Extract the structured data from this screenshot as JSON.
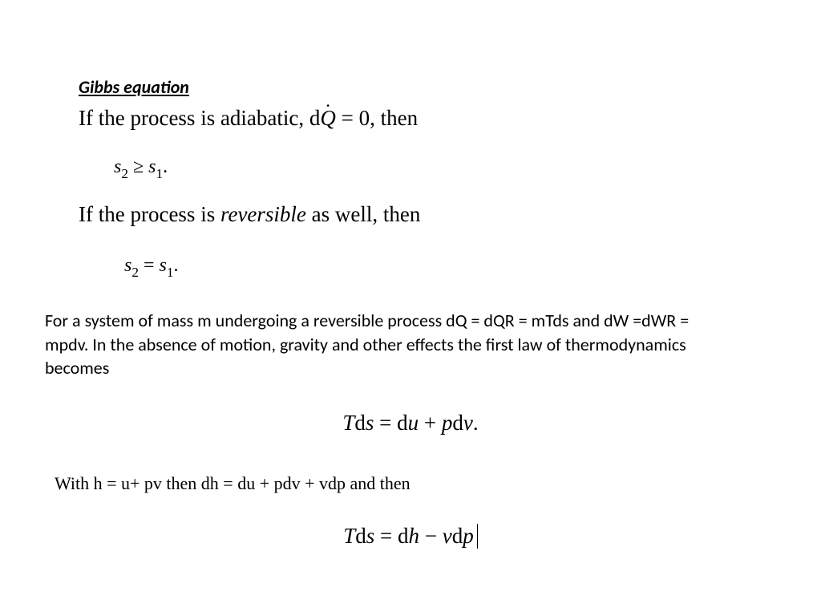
{
  "heading": "Gibbs equation",
  "line1": {
    "prefix": "If the process is adiabatic, d",
    "Q": "Q",
    "suffix": " = 0, then"
  },
  "ineq": {
    "s": "s",
    "two": "2",
    "ge": "≥",
    "one": "1",
    "period": "."
  },
  "line2": {
    "prefix": "If the process is ",
    "rev": "reversible",
    "suffix": " as well, then"
  },
  "eq2": {
    "s": "s",
    "two": "2",
    "eq": "=",
    "one": "1",
    "period": "."
  },
  "paragraph": "For a system of mass m undergoing a reversible process dQ = dQR = mTds and dW =dWR = mpdv. In the absence of motion, gravity and other effects the first law of thermodynamics becomes",
  "eq3": {
    "T": "T",
    "ds": "ds",
    "eq": " = ",
    "du": "du",
    "plus": " + ",
    "p": "p",
    "dv": "dv",
    "period": "."
  },
  "line3": "With h = u+ pv then dh = du + pdv + vdp and then",
  "eq4": {
    "T": "T",
    "ds": "ds",
    "eq": " = ",
    "dh": "dh",
    "minus": " − ",
    "v": "v",
    "dp": "dp"
  }
}
